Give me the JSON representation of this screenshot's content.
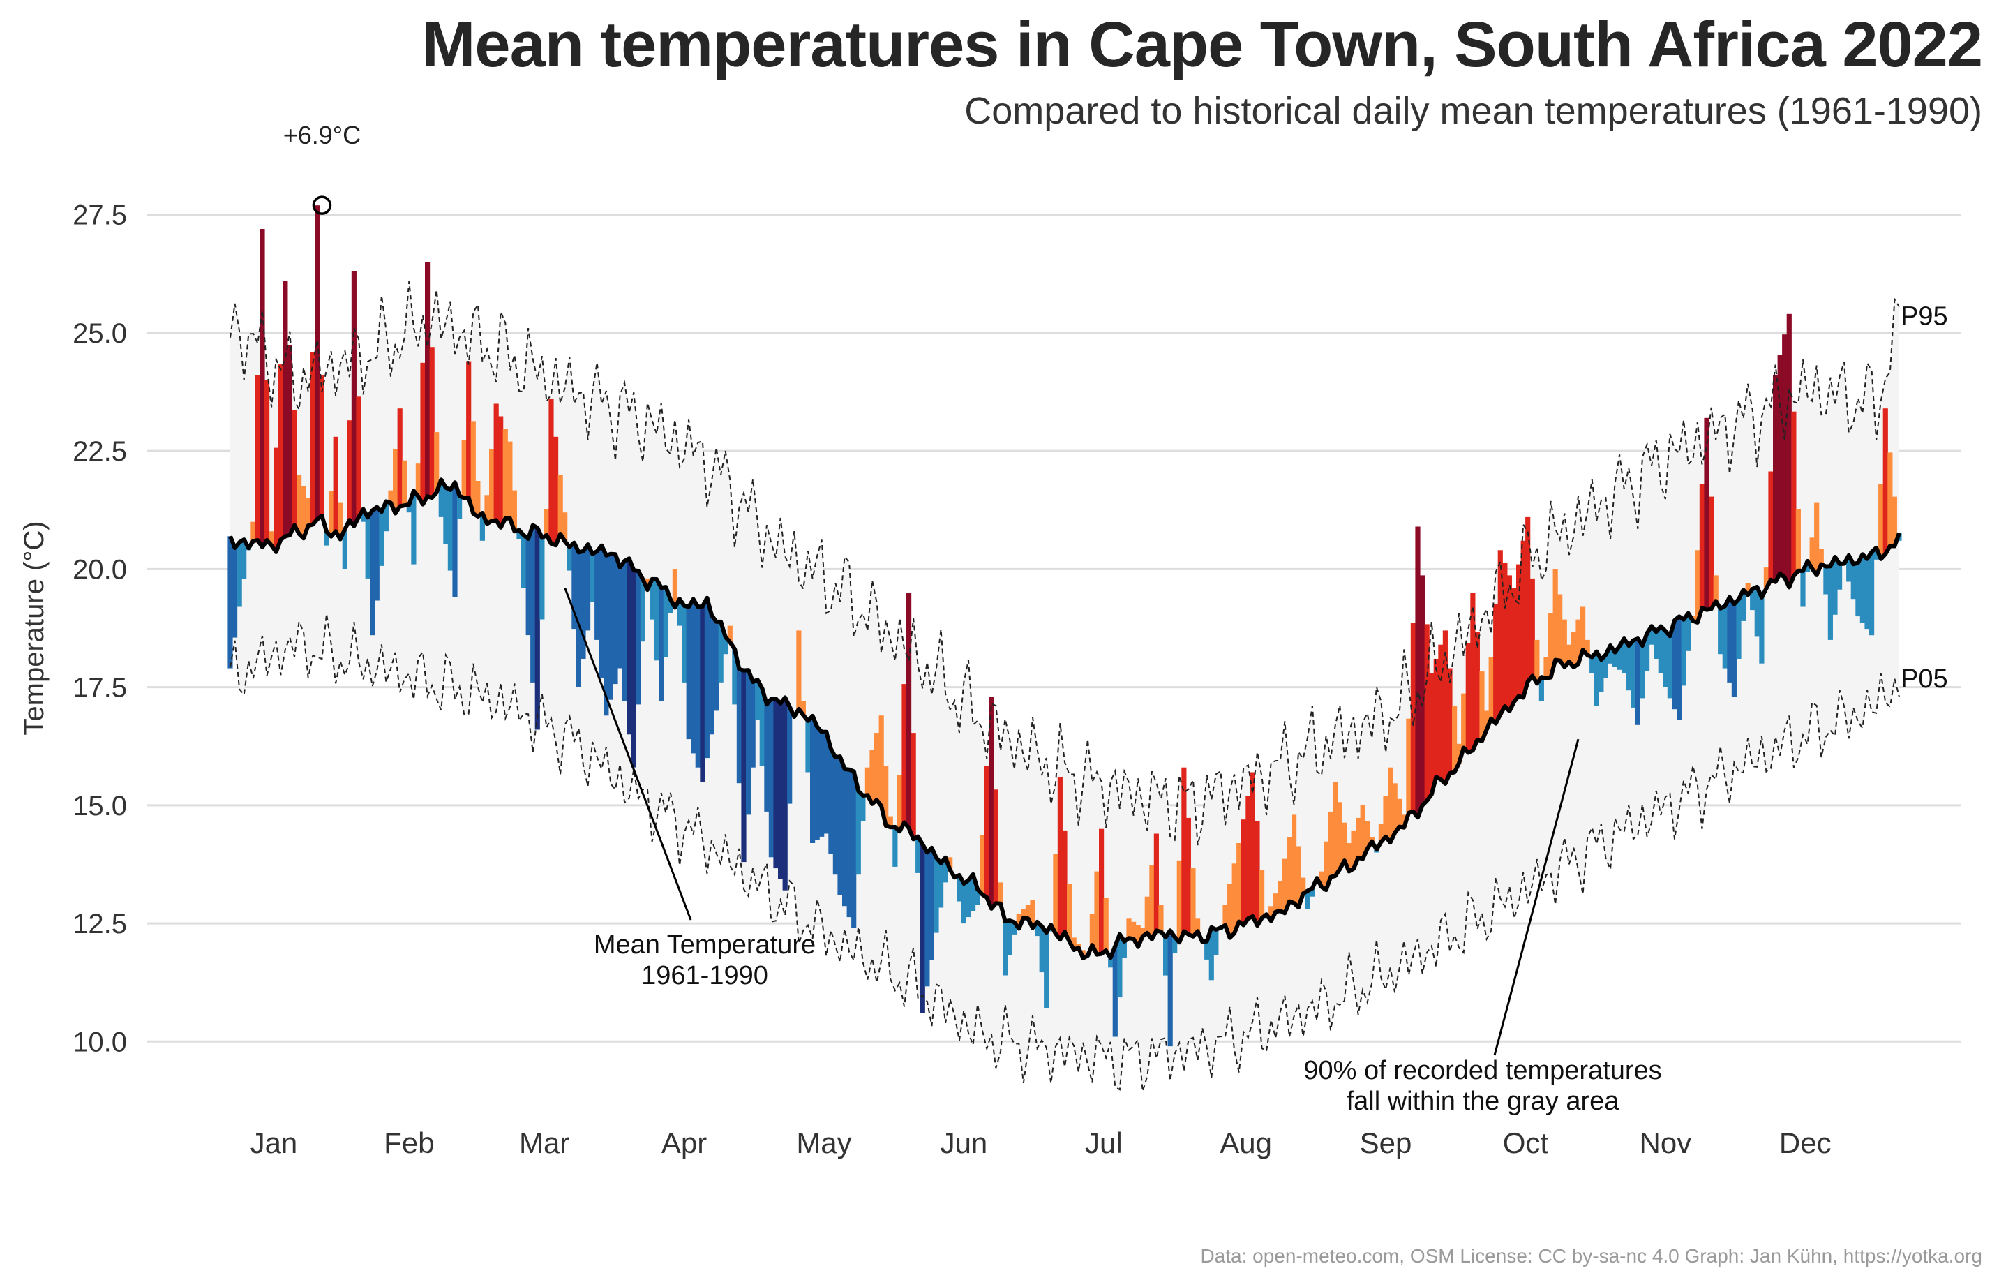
{
  "title": "Mean temperatures in Cape Town, South Africa 2022",
  "subtitle": "Compared to historical daily mean temperatures (1961-1990)",
  "caption": "Data: open-meteo.com, OSM  License: CC by-sa-nc 4.0  Graph: Jan Kühn, https://yotka.org",
  "chart_data": {
    "type": "area",
    "title": "Mean temperatures in Cape Town, South Africa 2022",
    "subtitle": "Compared to historical daily mean temperatures (1961-1990)",
    "ylabel": "Temperature (°C)",
    "xlabel": "",
    "ylim": [
      9.0,
      28.5
    ],
    "yticks": [
      10.0,
      12.5,
      15.0,
      17.5,
      20.0,
      22.5,
      25.0,
      27.5
    ],
    "ytick_labels": [
      "10.0",
      "12.5",
      "15.0",
      "17.5",
      "20.0",
      "22.5",
      "25.0",
      "27.5"
    ],
    "x_unit": "day of year 2022",
    "xlim": [
      1,
      365
    ],
    "grid": true,
    "legend": "none",
    "month_labels": [
      "Jan",
      "Feb",
      "Mar",
      "Apr",
      "May",
      "Jun",
      "Jul",
      "Aug",
      "Sep",
      "Oct",
      "Nov",
      "Dec"
    ],
    "series": [
      {
        "name": "Mean Temperature 1961-1990",
        "style": "solid black line",
        "x": [
          1,
          10,
          20,
          25,
          30,
          40,
          50,
          55,
          60,
          65,
          70,
          75,
          80,
          85,
          90,
          95,
          100,
          105,
          110,
          115,
          120,
          125,
          130,
          135,
          140,
          145,
          150,
          155,
          160,
          165,
          170,
          175,
          180,
          185,
          190,
          195,
          200,
          205,
          210,
          215,
          220,
          225,
          230,
          235,
          240,
          245,
          250,
          255,
          260,
          265,
          270,
          275,
          280,
          285,
          290,
          295,
          300,
          305,
          310,
          315,
          320,
          325,
          330,
          335,
          340,
          345,
          350,
          355,
          360,
          365
        ],
        "values": [
          20.6,
          20.5,
          21.0,
          20.7,
          21.2,
          21.4,
          21.8,
          21.1,
          21.0,
          20.8,
          20.7,
          20.5,
          20.4,
          20.3,
          19.9,
          19.6,
          19.2,
          19.3,
          18.4,
          17.6,
          17.2,
          17.0,
          16.6,
          15.8,
          15.2,
          14.6,
          14.4,
          13.9,
          13.5,
          13.2,
          12.6,
          12.5,
          12.4,
          12.0,
          11.8,
          12.1,
          12.2,
          12.3,
          12.2,
          12.3,
          12.4,
          12.6,
          12.7,
          13.1,
          13.4,
          13.7,
          14.1,
          14.4,
          14.9,
          15.5,
          16.0,
          16.6,
          17.1,
          17.6,
          17.9,
          18.1,
          18.2,
          18.4,
          18.6,
          18.8,
          19.0,
          19.2,
          19.4,
          19.6,
          19.8,
          20.0,
          20.1,
          20.2,
          20.3,
          20.6
        ]
      },
      {
        "name": "P95",
        "style": "dashed black line",
        "x": [
          1,
          15,
          30,
          45,
          60,
          75,
          90,
          105,
          120,
          135,
          150,
          165,
          180,
          195,
          210,
          225,
          240,
          255,
          270,
          285,
          300,
          315,
          330,
          345,
          360,
          365
        ],
        "values": [
          25.2,
          24.0,
          24.5,
          25.3,
          24.6,
          23.8,
          23.2,
          22.3,
          20.5,
          19.5,
          18.2,
          16.8,
          15.8,
          15.3,
          15.0,
          15.6,
          16.3,
          17.0,
          18.5,
          20.3,
          21.4,
          22.4,
          23.1,
          23.8,
          23.5,
          25.2
        ]
      },
      {
        "name": "P05",
        "style": "dashed black line",
        "x": [
          1,
          15,
          30,
          45,
          60,
          75,
          90,
          105,
          120,
          135,
          150,
          165,
          180,
          195,
          210,
          225,
          240,
          255,
          270,
          285,
          300,
          315,
          330,
          345,
          360,
          365
        ],
        "values": [
          17.7,
          18.4,
          18.0,
          17.6,
          17.2,
          16.4,
          15.2,
          14.2,
          13.0,
          12.0,
          11.2,
          10.1,
          9.8,
          9.6,
          9.8,
          10.2,
          10.8,
          11.5,
          12.4,
          13.3,
          14.2,
          15.0,
          15.8,
          16.5,
          17.1,
          17.7
        ]
      },
      {
        "name": "2022",
        "style": "filled deviation from historical mean; warm colors above, blue below",
        "x": [
          1,
          3,
          6,
          8,
          10,
          13,
          16,
          18,
          20,
          22,
          24,
          26,
          28,
          30,
          32,
          35,
          38,
          41,
          44,
          47,
          50,
          53,
          56,
          59,
          62,
          65,
          68,
          71,
          74,
          77,
          80,
          83,
          86,
          89,
          92,
          95,
          98,
          101,
          104,
          107,
          110,
          113,
          116,
          119,
          122,
          125,
          128,
          131,
          134,
          137,
          140,
          143,
          146,
          149,
          152,
          155,
          158,
          161,
          164,
          167,
          170,
          173,
          176,
          179,
          182,
          185,
          188,
          191,
          194,
          197,
          200,
          203,
          206,
          209,
          212,
          215,
          218,
          221,
          224,
          227,
          230,
          233,
          236,
          239,
          242,
          245,
          248,
          251,
          254,
          257,
          260,
          263,
          266,
          269,
          272,
          275,
          278,
          281,
          284,
          287,
          290,
          293,
          296,
          299,
          302,
          305,
          308,
          311,
          314,
          317,
          320,
          323,
          326,
          329,
          332,
          335,
          338,
          341,
          344,
          347,
          350,
          353,
          356,
          359,
          362,
          365
        ],
        "values": [
          17.9,
          19.2,
          21.0,
          27.2,
          20.8,
          26.1,
          22.0,
          21.5,
          27.7,
          20.5,
          22.8,
          20.0,
          26.3,
          21.0,
          18.6,
          20.8,
          23.4,
          20.1,
          26.5,
          21.1,
          19.4,
          24.4,
          20.6,
          23.5,
          22.7,
          19.6,
          16.6,
          23.6,
          21.2,
          17.5,
          19.3,
          16.9,
          17.9,
          15.8,
          19.8,
          17.2,
          20.0,
          16.4,
          15.5,
          17.0,
          18.8,
          13.8,
          16.8,
          13.9,
          13.2,
          18.7,
          14.2,
          14.4,
          13.1,
          12.4,
          15.8,
          16.9,
          13.7,
          19.5,
          10.6,
          12.3,
          13.9,
          12.5,
          12.9,
          17.3,
          11.4,
          12.7,
          13.0,
          10.7,
          15.6,
          12.2,
          11.8,
          14.5,
          10.1,
          12.6,
          12.4,
          14.4,
          9.9,
          15.8,
          12.6,
          11.3,
          12.9,
          14.2,
          15.7,
          12.6,
          13.4,
          14.8,
          12.8,
          13.6,
          15.5,
          14.2,
          15.0,
          14.0,
          15.8,
          14.8,
          20.9,
          17.8,
          18.7,
          16.3,
          19.5,
          17.0,
          20.4,
          19.6,
          21.1,
          17.2,
          20.0,
          18.4,
          19.2,
          17.1,
          18.0,
          17.8,
          16.7,
          18.4,
          17.5,
          16.8,
          19.0,
          23.2,
          18.2,
          17.3,
          19.7,
          18.0,
          24.1,
          25.4,
          19.2,
          21.4,
          18.5,
          20.1,
          19.0,
          18.6,
          23.4,
          20.6
        ]
      }
    ],
    "annotations": [
      {
        "text": "+6.9°C",
        "x": 21,
        "y": 27.7,
        "marker": "open circle"
      },
      {
        "text": "Mean Temperature",
        "x": 74,
        "y": 19.6
      },
      {
        "text": "1961-1990",
        "x": 74,
        "y": 19.6
      },
      {
        "text": "90% of recorded temperatures",
        "x": 295,
        "y": 16.4
      },
      {
        "text": "fall within the gray area",
        "x": 295,
        "y": 16.4
      },
      {
        "text": "P95",
        "x": 365,
        "y": 25.2
      },
      {
        "text": "P05",
        "x": 365,
        "y": 17.7
      }
    ],
    "colors": {
      "above_strong": "#8b0a26",
      "above_mid": "#e0261c",
      "above_light": "#fd8d3c",
      "below_light": "#2b8cbe",
      "below_mid": "#2166ac",
      "below_strong": "#1c2f7a",
      "band": "#f4f4f4",
      "grid": "#dddddd",
      "mean_line": "#000000"
    }
  }
}
